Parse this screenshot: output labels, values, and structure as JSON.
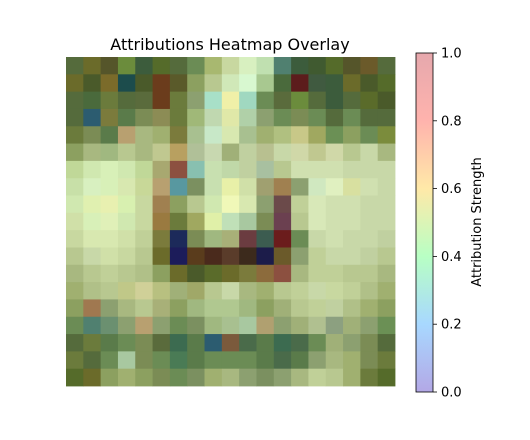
{
  "chart_data": {
    "type": "heatmap",
    "title": "Attributions Heatmap Overlay",
    "colorbar": {
      "label": "Attribution Strength",
      "range": [
        0.0,
        1.0
      ],
      "ticks": [
        "0.0",
        "0.2",
        "0.4",
        "0.6",
        "0.8",
        "1.0"
      ],
      "colors": [
        "#b3a8e6",
        "#a8d8ff",
        "#b8ffc4",
        "#ffe9a8",
        "#ffb3ad",
        "#e6a8ad"
      ]
    },
    "axes_visible": false,
    "rows": 19,
    "cols": 19,
    "cells": [
      [
        "#556b3c",
        "#6b6b2a",
        "#55552a",
        "#6b8c3c",
        "#3c5c3c",
        "#556b2a",
        "#556b3c",
        "#6b8c55",
        "#a8b870",
        "#c8d8a0",
        "#d8f0c0",
        "#c0e0b0",
        "#508070",
        "#3c5c3c",
        "#405a30",
        "#556b2a",
        "#55552a",
        "#6b5a2a",
        "#556b3c"
      ],
      [
        "#6b6b2a",
        "#4a5a2a",
        "#7b6b2a",
        "#1c4c4c",
        "#4a5a2a",
        "#6b3c1c",
        "#5a5a2a",
        "#8ca060",
        "#b8c890",
        "#d0e8b8",
        "#d8f8d0",
        "#a8c890",
        "#4a6a3c",
        "#5c1c1c",
        "#405a40",
        "#3c5c3c",
        "#6b6b2a",
        "#4a5a2a",
        "#556b2a"
      ],
      [
        "#556b3c",
        "#4a6a3c",
        "#6b7b3c",
        "#556b3c",
        "#5a6b3c",
        "#6b3c1c",
        "#6b7b3c",
        "#8ca070",
        "#a8e0c8",
        "#f0f0a8",
        "#a0d8c0",
        "#6b8c55",
        "#5a6b3c",
        "#6b8c3c",
        "#556b3c",
        "#3c5c3c",
        "#556b3c",
        "#5a6b2a",
        "#4a5a2a"
      ],
      [
        "#556b3c",
        "#2c5c70",
        "#7b7b3c",
        "#5a7b4a",
        "#7b8c55",
        "#8c8c55",
        "#6b7b3c",
        "#a0b878",
        "#c0d8b0",
        "#e0e8a8",
        "#b0d0a8",
        "#8ca070",
        "#6b8c55",
        "#7b8c55",
        "#6b8c55",
        "#556b3c",
        "#6b8c55",
        "#556b3c",
        "#556b3c"
      ],
      [
        "#6b7b3c",
        "#7b8c55",
        "#5a7b4a",
        "#b8a070",
        "#a8b880",
        "#a0b070",
        "#7b7b3c",
        "#a8c090",
        "#c8e8c8",
        "#d8e8b0",
        "#a8c090",
        "#a0b070",
        "#b0c080",
        "#c8c888",
        "#a0a860",
        "#6b9055",
        "#8ca060",
        "#6b8c55",
        "#7b8c3c"
      ],
      [
        "#8ca060",
        "#a8b880",
        "#a0b880",
        "#b8c890",
        "#a8b880",
        "#c0c890",
        "#b8a060",
        "#b0c098",
        "#c8d8b0",
        "#a0b078",
        "#c0d0a0",
        "#b8c090",
        "#c8d8a8",
        "#d0d8a8",
        "#c0c890",
        "#d0d8a8",
        "#b8c890",
        "#c8d8a8",
        "#a8b880"
      ],
      [
        "#c0d898",
        "#d0e8b0",
        "#d8f0b8",
        "#d0e8b0",
        "#c0d898",
        "#a8a870",
        "#8c5040",
        "#88c0b0",
        "#c8e0b0",
        "#c0d8a8",
        "#c0d0a0",
        "#a8c0a0",
        "#b8c890",
        "#d0e0b0",
        "#d0e0b0",
        "#d0e0b0",
        "#c8d8a8",
        "#c8d8a8",
        "#c8d8a8"
      ],
      [
        "#c8e0a8",
        "#d8f0c0",
        "#d8f0b8",
        "#d8e8b0",
        "#c8d898",
        "#b8a070",
        "#5898a0",
        "#7b9060",
        "#c8e0b0",
        "#e8f0a8",
        "#d0e0a8",
        "#a0a070",
        "#a08050",
        "#8ca070",
        "#d0e8c0",
        "#e0f0c0",
        "#d8e0a0",
        "#d0e0b0",
        "#c8d8a8"
      ],
      [
        "#d0e8b0",
        "#e0f0b0",
        "#e8f0b0",
        "#d8f0b0",
        "#c8d8a0",
        "#a08050",
        "#8ca060",
        "#b8c890",
        "#d0e8b0",
        "#f0f8b8",
        "#d8e8b0",
        "#8ca070",
        "#6b4a4a",
        "#c0d098",
        "#d8e8b8",
        "#d0e0b0",
        "#d0e0b0",
        "#c8d8a8",
        "#c8d8a8"
      ],
      [
        "#d0e0a8",
        "#d8f0b8",
        "#e0f0b8",
        "#d0e8b0",
        "#c8d8a0",
        "#9a7a40",
        "#6b7b3c",
        "#a0a860",
        "#e0f0a8",
        "#c0e0b8",
        "#a8c8a0",
        "#7b8c55",
        "#6b4050",
        "#b8c890",
        "#d8e8b8",
        "#d0e0b0",
        "#d0e0b0",
        "#c8d8a8",
        "#c8d8a8"
      ],
      [
        "#c8d8a0",
        "#d8e8b0",
        "#d8e8b0",
        "#d0e0a8",
        "#c0d098",
        "#7b7b3c",
        "#1c2a5a",
        "#7b8c55",
        "#a0b880",
        "#a8b078",
        "#6b3c40",
        "#3c5c50",
        "#6b1c1c",
        "#6b8c55",
        "#c8d8a8",
        "#d0e0b0",
        "#c8d8a8",
        "#c8d8a8",
        "#c0d0a0"
      ],
      [
        "#b8c890",
        "#c8d8a8",
        "#d0e0a8",
        "#c8d8a0",
        "#b8c890",
        "#6b6b2a",
        "#1c1c5a",
        "#5a3c1c",
        "#4a2a1c",
        "#5a3c2a",
        "#3c2a1c",
        "#1c1c4a",
        "#6b5a2a",
        "#8ca070",
        "#c0d098",
        "#c8d8a8",
        "#c8d8a8",
        "#c0d0a0",
        "#b8c890"
      ],
      [
        "#a8b880",
        "#b8c890",
        "#c0d098",
        "#b8c890",
        "#b0c088",
        "#8ca060",
        "#6b6b2a",
        "#4a5a2a",
        "#5a6b2a",
        "#6b6b2a",
        "#7b7b3c",
        "#8c6b3c",
        "#8c5040",
        "#a8b880",
        "#c0d098",
        "#c0d098",
        "#b8c890",
        "#b8c890",
        "#a8b880"
      ],
      [
        "#a0b070",
        "#b0c088",
        "#b8c890",
        "#c0c888",
        "#d0d098",
        "#b8c080",
        "#a0b078",
        "#a0a868",
        "#b8c890",
        "#c8d8a8",
        "#a8b880",
        "#a0b070",
        "#b8c890",
        "#c0d098",
        "#c8d8a8",
        "#c8d8a0",
        "#c0d098",
        "#b0c088",
        "#a0b070"
      ],
      [
        "#8ca060",
        "#a07850",
        "#8ca070",
        "#a8b880",
        "#b8c890",
        "#a8b078",
        "#8ca060",
        "#a0b880",
        "#b0c890",
        "#b0c890",
        "#a0b880",
        "#8ca060",
        "#a0b078",
        "#b8c890",
        "#c0d098",
        "#c0d0a0",
        "#b0c088",
        "#a0b070",
        "#8ca060"
      ],
      [
        "#6b8c55",
        "#508070",
        "#6b9070",
        "#8ca070",
        "#b8a070",
        "#8ca070",
        "#6b8c55",
        "#7b9060",
        "#a0b880",
        "#a8c090",
        "#a8c8a0",
        "#b0a070",
        "#8ca070",
        "#a0b078",
        "#b0c090",
        "#8ca080",
        "#a0b078",
        "#8ca070",
        "#6b9055"
      ],
      [
        "#556b3c",
        "#6b7b3c",
        "#5a7b4a",
        "#6b8c55",
        "#7b8c55",
        "#5a6b3c",
        "#3c6b50",
        "#5a7b4a",
        "#2c5c70",
        "#7b5a3c",
        "#4a6b4a",
        "#5a7b4a",
        "#3c6b50",
        "#4a6b4a",
        "#6b8c55",
        "#a0b078",
        "#8ca070",
        "#7b8c55",
        "#556b3c"
      ],
      [
        "#6b7b3c",
        "#556b3c",
        "#6b8c55",
        "#a8c8a0",
        "#7b8c55",
        "#6b8c55",
        "#4a7b55",
        "#5a7b4a",
        "#6b8c55",
        "#6b8c55",
        "#6b8c55",
        "#5a7b4a",
        "#4a6b4a",
        "#5a7b4a",
        "#8ca070",
        "#a8b880",
        "#a0b070",
        "#7b8c55",
        "#6b7b3c"
      ],
      [
        "#556b2a",
        "#6b6b2a",
        "#8ca060",
        "#a0b070",
        "#8ca060",
        "#7b8c55",
        "#6b8c55",
        "#7b9060",
        "#a0b070",
        "#a8b880",
        "#8ca070",
        "#7b9060",
        "#8ca070",
        "#a8b880",
        "#c0d098",
        "#b8c890",
        "#a0b070",
        "#6b7b3c",
        "#556b2a"
      ]
    ]
  }
}
